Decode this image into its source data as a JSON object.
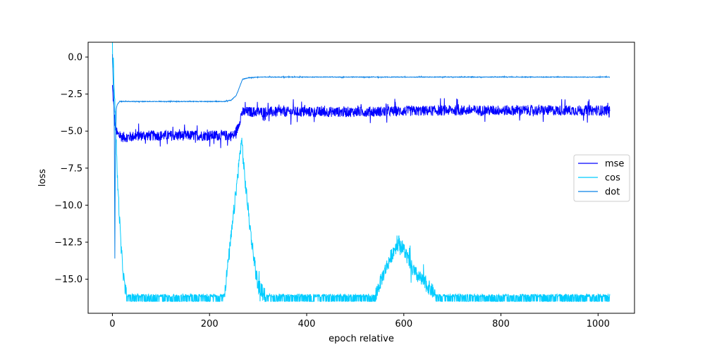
{
  "chart_data": {
    "type": "line",
    "title": "",
    "xlabel": "epoch relative",
    "ylabel": "loss",
    "xlim": [
      -50,
      1075
    ],
    "ylim": [
      -17.3,
      1.0
    ],
    "xticks": [
      0,
      200,
      400,
      600,
      800,
      1000
    ],
    "xtick_labels": [
      "0",
      "200",
      "400",
      "600",
      "800",
      "1000"
    ],
    "yticks": [
      0.0,
      -2.5,
      -5.0,
      -7.5,
      -10.0,
      -12.5,
      -15.0
    ],
    "ytick_labels": [
      "0.0",
      "−2.5",
      "−5.0",
      "−7.5",
      "−10.0",
      "−12.5",
      "−15.0"
    ],
    "grid": false,
    "legend_position": "center-right",
    "series": [
      {
        "name": "mse",
        "color": "#0000ff",
        "noise": 0.35,
        "x": [
          0,
          3,
          6,
          10,
          15,
          20,
          30,
          60,
          120,
          200,
          250,
          258,
          266,
          272,
          300,
          500,
          700,
          900,
          1024
        ],
        "y": [
          -2.0,
          -3.5,
          -4.8,
          -5.2,
          -5.3,
          -5.4,
          -5.4,
          -5.3,
          -5.3,
          -5.3,
          -5.3,
          -4.8,
          -3.8,
          -3.7,
          -3.7,
          -3.7,
          -3.6,
          -3.6,
          -3.6
        ]
      },
      {
        "name": "cos",
        "color": "#00ccff",
        "noise": 0.5,
        "x": [
          0,
          2,
          5,
          10,
          18,
          25,
          30,
          230,
          245,
          258,
          266,
          272,
          285,
          300,
          320,
          540,
          560,
          580,
          590,
          600,
          620,
          650,
          670,
          690,
          1024
        ],
        "y": [
          0.0,
          -0.5,
          -3.0,
          -8.0,
          -13.0,
          -15.5,
          -16.2,
          -16.2,
          -12.0,
          -8.0,
          -5.5,
          -8.0,
          -12.0,
          -15.5,
          -16.2,
          -16.2,
          -14.5,
          -13.0,
          -12.5,
          -13.0,
          -14.5,
          -15.5,
          -16.2,
          -16.2,
          -16.2
        ]
      },
      {
        "name": "dot",
        "color": "#0a82e6",
        "noise": 0.02,
        "x": [
          0,
          1,
          3,
          4,
          5,
          6,
          8,
          10,
          15,
          20,
          30,
          230,
          245,
          255,
          262,
          268,
          280,
          300,
          500,
          700,
          900,
          1024
        ],
        "y": [
          0.2,
          -1.0,
          -3.0,
          -5.5,
          -13.6,
          -6.5,
          -3.5,
          -3.2,
          -3.0,
          -3.0,
          -3.0,
          -3.0,
          -2.9,
          -2.6,
          -2.0,
          -1.5,
          -1.4,
          -1.35,
          -1.35,
          -1.35,
          -1.35,
          -1.35
        ]
      }
    ]
  }
}
